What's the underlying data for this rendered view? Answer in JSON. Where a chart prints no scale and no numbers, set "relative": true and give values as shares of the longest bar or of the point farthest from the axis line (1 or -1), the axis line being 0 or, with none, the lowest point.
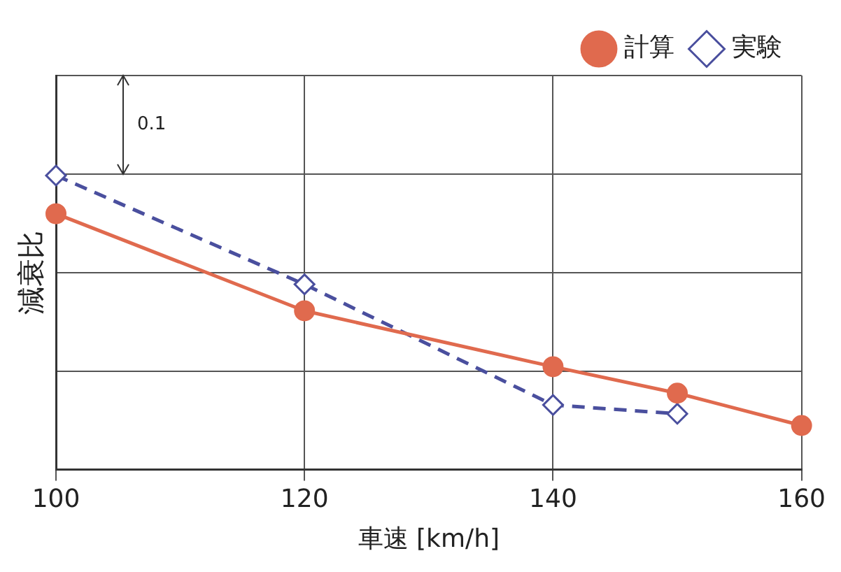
{
  "chart_data": {
    "type": "line",
    "xlabel": "車速 [km/h]",
    "ylabel": "減衰比",
    "relative": true,
    "xlim": [
      100,
      160
    ],
    "xticks": [
      100,
      120,
      140,
      160
    ],
    "grid": true,
    "legend": "top right",
    "annotations": [
      "0.1"
    ],
    "series": [
      {
        "name": "計算",
        "color": "#e06a4e",
        "marker": "circle",
        "line_style": "solid",
        "x": [
          100,
          120,
          140,
          150,
          160
        ],
        "values": [
          0.87,
          0.54,
          0.35,
          0.26,
          0.15
        ]
      },
      {
        "name": "実験",
        "color": "#4a4f9e",
        "marker": "diamond",
        "line_style": "dashed",
        "x": [
          100,
          120,
          140,
          150
        ],
        "values": [
          1,
          0.63,
          0.22,
          0.19
        ]
      }
    ]
  }
}
